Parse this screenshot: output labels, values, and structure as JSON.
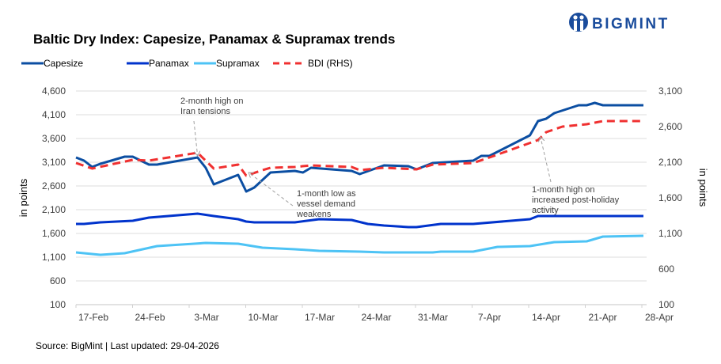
{
  "brand": {
    "name": "BIGMINT",
    "color": "#1a4c9c",
    "icon": "bigmint-logo-icon"
  },
  "chart_data": {
    "type": "line",
    "title": "Baltic Dry Index: Capesize, Panamax & Supramax trends",
    "ylabel_left": "in points",
    "ylabel_right": "in points",
    "source": "Source: BigMint | Last updated: 29-04-2026",
    "x_ticks": [
      "17-Feb",
      "24-Feb",
      "3-Mar",
      "10-Mar",
      "17-Mar",
      "24-Mar",
      "31-Mar",
      "7-Apr",
      "14-Apr",
      "21-Apr",
      "28-Apr"
    ],
    "xlim": [
      "2026-02-17",
      "2026-04-28"
    ],
    "ylim_left": [
      100,
      4600
    ],
    "yticks_left": [
      "4,600",
      "4,100",
      "3,600",
      "3,100",
      "2,600",
      "2,100",
      "1,600",
      "1,100",
      "600",
      "100"
    ],
    "ylim_right": [
      100,
      3100
    ],
    "yticks_right": [
      "3,100",
      "2,600",
      "2,100",
      "1,600",
      "1,100",
      "600",
      "100"
    ],
    "grid": true,
    "legend_position": "top-left",
    "series": [
      {
        "name": "Capesize",
        "axis": "left",
        "color": "#0b4ea2",
        "dash": false,
        "points": [
          [
            "2026-02-17",
            3200
          ],
          [
            "2026-02-18",
            3133
          ],
          [
            "2026-02-19",
            3000
          ],
          [
            "2026-02-20",
            3067
          ],
          [
            "2026-02-23",
            3217
          ],
          [
            "2026-02-24",
            3217
          ],
          [
            "2026-02-26",
            3050
          ],
          [
            "2026-02-27",
            3050
          ],
          [
            "2026-03-04",
            3200
          ],
          [
            "2026-03-05",
            2983
          ],
          [
            "2026-03-06",
            2633
          ],
          [
            "2026-03-09",
            2833
          ],
          [
            "2026-03-10",
            2483
          ],
          [
            "2026-03-11",
            2567
          ],
          [
            "2026-03-13",
            2883
          ],
          [
            "2026-03-16",
            2917
          ],
          [
            "2026-03-17",
            2883
          ],
          [
            "2026-03-18",
            2983
          ],
          [
            "2026-03-23",
            2917
          ],
          [
            "2026-03-24",
            2850
          ],
          [
            "2026-03-27",
            3033
          ],
          [
            "2026-03-30",
            3017
          ],
          [
            "2026-03-31",
            2950
          ],
          [
            "2026-04-02",
            3083
          ],
          [
            "2026-04-07",
            3133
          ],
          [
            "2026-04-08",
            3233
          ],
          [
            "2026-04-09",
            3233
          ],
          [
            "2026-04-14",
            3667
          ],
          [
            "2026-04-15",
            3967
          ],
          [
            "2026-04-16",
            4017
          ],
          [
            "2026-04-17",
            4133
          ],
          [
            "2026-04-20",
            4300
          ],
          [
            "2026-04-21",
            4300
          ],
          [
            "2026-04-22",
            4350
          ],
          [
            "2026-04-23",
            4300
          ],
          [
            "2026-04-28",
            4300
          ]
        ]
      },
      {
        "name": "Panamax",
        "axis": "left",
        "color": "#0033cc",
        "dash": false,
        "points": [
          [
            "2026-02-17",
            1800
          ],
          [
            "2026-02-18",
            1800
          ],
          [
            "2026-02-20",
            1833
          ],
          [
            "2026-02-24",
            1867
          ],
          [
            "2026-02-26",
            1933
          ],
          [
            "2026-03-04",
            2017
          ],
          [
            "2026-03-06",
            1967
          ],
          [
            "2026-03-09",
            1900
          ],
          [
            "2026-03-10",
            1850
          ],
          [
            "2026-03-11",
            1833
          ],
          [
            "2026-03-16",
            1833
          ],
          [
            "2026-03-19",
            1900
          ],
          [
            "2026-03-23",
            1883
          ],
          [
            "2026-03-25",
            1800
          ],
          [
            "2026-03-27",
            1767
          ],
          [
            "2026-03-30",
            1733
          ],
          [
            "2026-03-31",
            1733
          ],
          [
            "2026-04-03",
            1800
          ],
          [
            "2026-04-07",
            1800
          ],
          [
            "2026-04-14",
            1900
          ],
          [
            "2026-04-15",
            1967
          ],
          [
            "2026-04-22",
            1967
          ],
          [
            "2026-04-24",
            1967
          ],
          [
            "2026-04-28",
            1967
          ]
        ]
      },
      {
        "name": "Supramax",
        "axis": "left",
        "color": "#4dc3f5",
        "dash": false,
        "points": [
          [
            "2026-02-17",
            1200
          ],
          [
            "2026-02-20",
            1150
          ],
          [
            "2026-02-23",
            1183
          ],
          [
            "2026-02-27",
            1333
          ],
          [
            "2026-03-05",
            1400
          ],
          [
            "2026-03-09",
            1383
          ],
          [
            "2026-03-12",
            1300
          ],
          [
            "2026-03-16",
            1267
          ],
          [
            "2026-03-19",
            1233
          ],
          [
            "2026-03-24",
            1217
          ],
          [
            "2026-03-27",
            1200
          ],
          [
            "2026-04-02",
            1200
          ],
          [
            "2026-04-03",
            1217
          ],
          [
            "2026-04-07",
            1217
          ],
          [
            "2026-04-10",
            1317
          ],
          [
            "2026-04-14",
            1333
          ],
          [
            "2026-04-17",
            1417
          ],
          [
            "2026-04-21",
            1433
          ],
          [
            "2026-04-23",
            1533
          ],
          [
            "2026-04-28",
            1550
          ]
        ]
      },
      {
        "name": "BDI (RHS)",
        "axis": "right",
        "color": "#f03030",
        "dash": true,
        "points": [
          [
            "2026-02-17",
            2089
          ],
          [
            "2026-02-19",
            2011
          ],
          [
            "2026-02-24",
            2133
          ],
          [
            "2026-02-26",
            2122
          ],
          [
            "2026-03-04",
            2233
          ],
          [
            "2026-03-06",
            2011
          ],
          [
            "2026-03-09",
            2067
          ],
          [
            "2026-03-10",
            1911
          ],
          [
            "2026-03-12",
            1989
          ],
          [
            "2026-03-13",
            2022
          ],
          [
            "2026-03-16",
            2033
          ],
          [
            "2026-03-18",
            2056
          ],
          [
            "2026-03-23",
            2033
          ],
          [
            "2026-03-24",
            1989
          ],
          [
            "2026-03-27",
            2022
          ],
          [
            "2026-03-31",
            2000
          ],
          [
            "2026-04-02",
            2067
          ],
          [
            "2026-04-07",
            2089
          ],
          [
            "2026-04-09",
            2167
          ],
          [
            "2026-04-15",
            2411
          ],
          [
            "2026-04-16",
            2522
          ],
          [
            "2026-04-18",
            2600
          ],
          [
            "2026-04-21",
            2633
          ],
          [
            "2026-04-23",
            2678
          ],
          [
            "2026-04-28",
            2678
          ]
        ]
      }
    ],
    "annotations": [
      {
        "lines": [
          "2-month high on",
          "Iran tensions"
        ],
        "target": [
          "2026-03-04",
          2233
        ],
        "axis": "right"
      },
      {
        "lines": [
          "1-month low as",
          "vessel demand",
          "weakens"
        ],
        "target": [
          "2026-03-10",
          1911
        ],
        "axis": "right"
      },
      {
        "lines": [
          "1-month high on",
          "increased post-holiday",
          "activity"
        ],
        "target": [
          "2026-04-15",
          2411
        ],
        "axis": "right"
      }
    ]
  }
}
